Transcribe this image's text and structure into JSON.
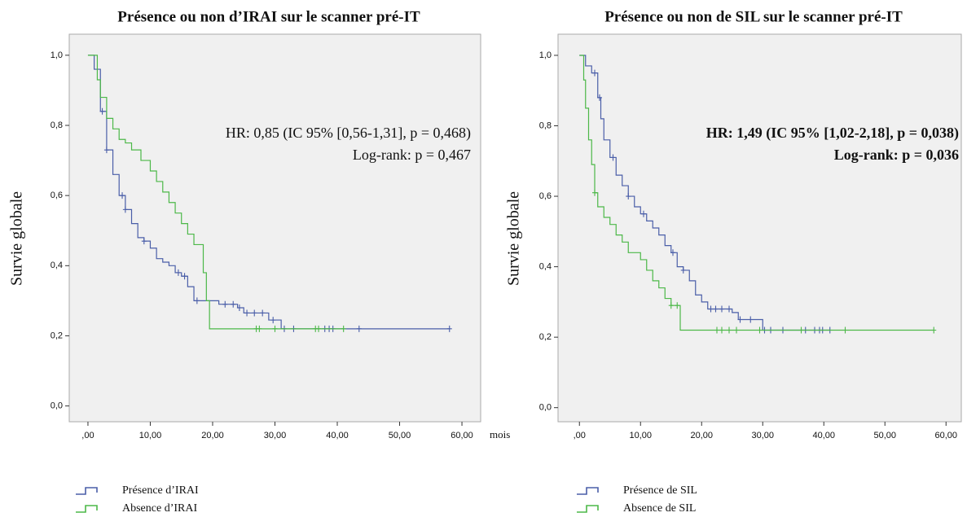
{
  "chart_data": [
    {
      "type": "km",
      "title": "Présence ou non d’IRAI sur le scanner pré-IT",
      "y_label": "Survie globale",
      "x_unit": "mois",
      "annotations": [
        "HR: 0,85 (IC 95% [0,56-1,31], p = 0,468)",
        "Log-rank: p = 0,467"
      ],
      "annotation_bold": false,
      "xlim": [
        -3,
        63
      ],
      "ylim": [
        -0.045,
        1.06
      ],
      "xticks": [
        {
          "value": 0,
          "label": ",00"
        },
        {
          "value": 10,
          "label": "10,00"
        },
        {
          "value": 20,
          "label": "20,00"
        },
        {
          "value": 30,
          "label": "30,00"
        },
        {
          "value": 40,
          "label": "40,00"
        },
        {
          "value": 50,
          "label": "50,00"
        },
        {
          "value": 60,
          "label": "60,00"
        }
      ],
      "yticks": [
        {
          "value": 0,
          "label": "0,0"
        },
        {
          "value": 0.2,
          "label": "0,2"
        },
        {
          "value": 0.4,
          "label": "0,4"
        },
        {
          "value": 0.6,
          "label": "0,6"
        },
        {
          "value": 0.8,
          "label": "0,8"
        },
        {
          "value": 1,
          "label": "1,0"
        }
      ],
      "series": [
        {
          "name": "Présence d’IRAI",
          "color": "#4a5ea8",
          "x": [
            0,
            1,
            2,
            3,
            4,
            5,
            6,
            7,
            8,
            9,
            10,
            11,
            12,
            13,
            14,
            15,
            16,
            17,
            21,
            24,
            25,
            29,
            31,
            58
          ],
          "values": [
            1.0,
            0.96,
            0.84,
            0.73,
            0.66,
            0.6,
            0.56,
            0.52,
            0.48,
            0.47,
            0.45,
            0.42,
            0.41,
            0.4,
            0.38,
            0.37,
            0.34,
            0.3,
            0.29,
            0.28,
            0.265,
            0.245,
            0.22,
            0.22
          ],
          "censored": [
            2.3,
            3.0,
            5.5,
            6.0,
            9.0,
            14.5,
            15.5,
            17.5,
            22,
            23.3,
            24.3,
            25.5,
            26.7,
            28,
            29.7,
            31.5,
            33,
            38,
            38.7,
            39.3,
            43.5,
            58
          ]
        },
        {
          "name": "Absence d’IRAI",
          "color": "#4cb848",
          "x": [
            0,
            1.5,
            2,
            3,
            4,
            5,
            6,
            7,
            8.5,
            10,
            11,
            12,
            13,
            14,
            15,
            16,
            17,
            18.5,
            19,
            19.5,
            41
          ],
          "values": [
            1.0,
            0.93,
            0.88,
            0.82,
            0.79,
            0.76,
            0.75,
            0.73,
            0.7,
            0.67,
            0.64,
            0.61,
            0.58,
            0.55,
            0.52,
            0.49,
            0.46,
            0.38,
            0.3,
            0.22,
            0.22
          ],
          "censored": [
            27,
            27.5,
            30,
            36.5,
            37,
            41
          ]
        }
      ]
    },
    {
      "type": "km",
      "title": "Présence ou non de SIL sur le scanner pré-IT",
      "y_label": "Survie globale",
      "annotations": [
        "HR: 1,49 (IC 95% [1,02-2,18], p = 0,038)",
        "Log-rank: p = 0,036"
      ],
      "annotation_bold": true,
      "xlim": [
        -3.5,
        62.5
      ],
      "ylim": [
        -0.04,
        1.06
      ],
      "xticks": [
        {
          "value": 0,
          "label": ",00"
        },
        {
          "value": 10,
          "label": "10,00"
        },
        {
          "value": 20,
          "label": "20,00"
        },
        {
          "value": 30,
          "label": "30,00"
        },
        {
          "value": 40,
          "label": "40,00"
        },
        {
          "value": 50,
          "label": "50,00"
        },
        {
          "value": 60,
          "label": "60,00"
        }
      ],
      "yticks": [
        {
          "value": 0,
          "label": "0,0"
        },
        {
          "value": 0.2,
          "label": "0,2"
        },
        {
          "value": 0.4,
          "label": "0,4"
        },
        {
          "value": 0.6,
          "label": "0,6"
        },
        {
          "value": 0.8,
          "label": "0,8"
        },
        {
          "value": 1,
          "label": "1,0"
        }
      ],
      "series": [
        {
          "name": "Présence de SIL",
          "color": "#4a5ea8",
          "x": [
            0,
            1,
            2,
            3,
            3.5,
            4,
            5,
            6,
            7,
            8,
            9,
            10,
            11,
            12,
            13,
            14,
            15,
            16,
            17,
            18,
            19,
            20,
            21,
            25,
            26,
            30,
            31,
            41
          ],
          "values": [
            1.0,
            0.97,
            0.95,
            0.88,
            0.82,
            0.76,
            0.71,
            0.66,
            0.63,
            0.6,
            0.57,
            0.55,
            0.53,
            0.51,
            0.49,
            0.46,
            0.44,
            0.4,
            0.39,
            0.36,
            0.32,
            0.3,
            0.28,
            0.27,
            0.25,
            0.22,
            0.22,
            0.22
          ],
          "censored": [
            2.5,
            3.3,
            5.5,
            8,
            10.5,
            15.3,
            17,
            21.5,
            22.3,
            23.3,
            24.5,
            26.3,
            28,
            30.3,
            31.3,
            33.3,
            37,
            38.5,
            39.3,
            39.8,
            41
          ]
        },
        {
          "name": "Absence de SIL",
          "color": "#4cb848",
          "x": [
            0,
            0.7,
            1,
            1.5,
            2,
            2.5,
            3,
            4,
            5,
            6,
            7,
            8,
            10,
            11,
            12,
            13,
            14,
            15,
            16.5,
            58
          ],
          "values": [
            1.0,
            0.93,
            0.85,
            0.76,
            0.69,
            0.61,
            0.57,
            0.54,
            0.52,
            0.49,
            0.47,
            0.44,
            0.42,
            0.39,
            0.36,
            0.34,
            0.31,
            0.29,
            0.22,
            0.22
          ],
          "censored": [
            2.5,
            15,
            16,
            22.5,
            23.3,
            24.5,
            25.7,
            29.5,
            36.3,
            43.5,
            58
          ]
        }
      ]
    }
  ]
}
